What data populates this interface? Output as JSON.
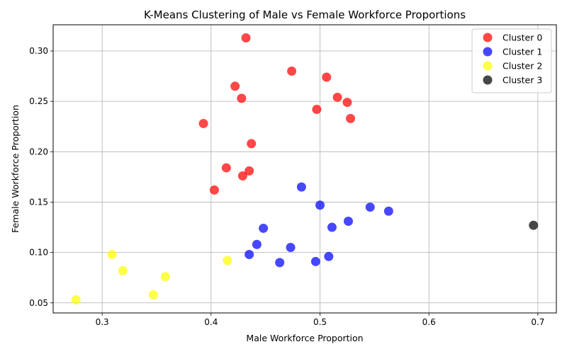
{
  "chart_data": {
    "type": "scatter",
    "title": "K-Means Clustering of Male vs Female Workforce Proportions",
    "xlabel": "Male Workforce Proportion",
    "ylabel": "Female Workforce Proportion",
    "xlim": [
      0.255,
      0.717
    ],
    "ylim": [
      0.04,
      0.326
    ],
    "xticks": [
      0.3,
      0.4,
      0.5,
      0.6,
      0.7
    ],
    "xtick_labels": [
      "0.3",
      "0.4",
      "0.5",
      "0.6",
      "0.7"
    ],
    "yticks": [
      0.05,
      0.1,
      0.15,
      0.2,
      0.25,
      0.3
    ],
    "ytick_labels": [
      "0.05",
      "0.10",
      "0.15",
      "0.20",
      "0.25",
      "0.30"
    ],
    "grid": true,
    "legend_position": "top-right",
    "series": [
      {
        "name": "Cluster 0",
        "color": "#ff0000",
        "points": [
          [
            0.432,
            0.313
          ],
          [
            0.474,
            0.28
          ],
          [
            0.506,
            0.274
          ],
          [
            0.422,
            0.265
          ],
          [
            0.428,
            0.253
          ],
          [
            0.516,
            0.254
          ],
          [
            0.525,
            0.249
          ],
          [
            0.497,
            0.242
          ],
          [
            0.528,
            0.233
          ],
          [
            0.393,
            0.228
          ],
          [
            0.437,
            0.208
          ],
          [
            0.414,
            0.184
          ],
          [
            0.435,
            0.181
          ],
          [
            0.429,
            0.176
          ],
          [
            0.403,
            0.162
          ]
        ]
      },
      {
        "name": "Cluster 1",
        "color": "#0000ff",
        "points": [
          [
            0.483,
            0.165
          ],
          [
            0.5,
            0.147
          ],
          [
            0.546,
            0.145
          ],
          [
            0.563,
            0.141
          ],
          [
            0.526,
            0.131
          ],
          [
            0.511,
            0.125
          ],
          [
            0.448,
            0.124
          ],
          [
            0.442,
            0.108
          ],
          [
            0.473,
            0.105
          ],
          [
            0.435,
            0.098
          ],
          [
            0.508,
            0.096
          ],
          [
            0.463,
            0.09
          ],
          [
            0.496,
            0.091
          ]
        ]
      },
      {
        "name": "Cluster 2",
        "color": "#ffff00",
        "points": [
          [
            0.309,
            0.098
          ],
          [
            0.415,
            0.092
          ],
          [
            0.319,
            0.082
          ],
          [
            0.358,
            0.076
          ],
          [
            0.347,
            0.058
          ],
          [
            0.276,
            0.053
          ]
        ]
      },
      {
        "name": "Cluster 3",
        "color": "#000000",
        "points": [
          [
            0.696,
            0.127
          ]
        ]
      }
    ]
  }
}
